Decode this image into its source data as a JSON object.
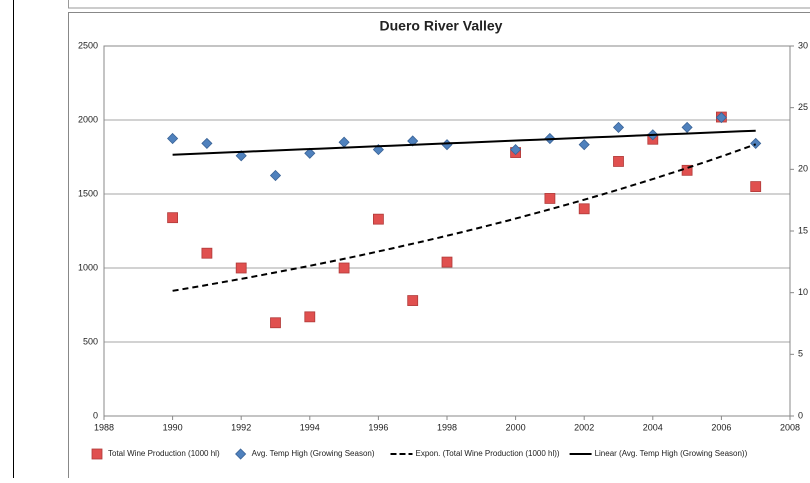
{
  "chart_data": {
    "type": "scatter",
    "title": "Duero River Valley",
    "x": [
      1990,
      1991,
      1992,
      1993,
      1994,
      1995,
      1996,
      1997,
      1998,
      2000,
      2001,
      2002,
      2003,
      2004,
      2005,
      2006,
      2007
    ],
    "series": [
      {
        "name": "Total Wine Production (1000 hl)",
        "color": "#e0504f",
        "marker": "square",
        "values": [
          1340,
          1100,
          1000,
          630,
          670,
          1000,
          1330,
          780,
          1040,
          1780,
          1470,
          1400,
          1720,
          1870,
          1660,
          2020,
          1550
        ]
      },
      {
        "name": "Avg. Temp High (Growing Season)",
        "color": "#4f81bd",
        "marker": "diamond",
        "axis": "y2",
        "values": [
          22.5,
          22.1,
          21.1,
          19.5,
          21.3,
          22.2,
          21.6,
          22.3,
          22.0,
          21.6,
          22.5,
          22.0,
          23.4,
          22.8,
          23.4,
          24.2,
          22.1
        ]
      }
    ],
    "trendlines": [
      {
        "name": "Expon. (Total Wine Production (1000 hl))",
        "series_index": 0,
        "fit": "exponential",
        "dashed": true,
        "color": "#000000"
      },
      {
        "name": "Linear (Avg. Temp High (Growing Season))",
        "series_index": 1,
        "fit": "linear",
        "dashed": false,
        "color": "#000000"
      }
    ],
    "xlim": [
      1988,
      2008
    ],
    "xticks": [
      1988,
      1990,
      1992,
      1994,
      1996,
      1998,
      2000,
      2002,
      2004,
      2006,
      2008
    ],
    "ylim": [
      0,
      2500
    ],
    "yticks": [
      0,
      500,
      1000,
      1500,
      2000,
      2500
    ],
    "y2lim": [
      0,
      30
    ],
    "y2ticks": [
      0,
      5,
      10,
      15,
      20,
      25,
      30
    ],
    "grid": true,
    "legend": "bottom"
  }
}
